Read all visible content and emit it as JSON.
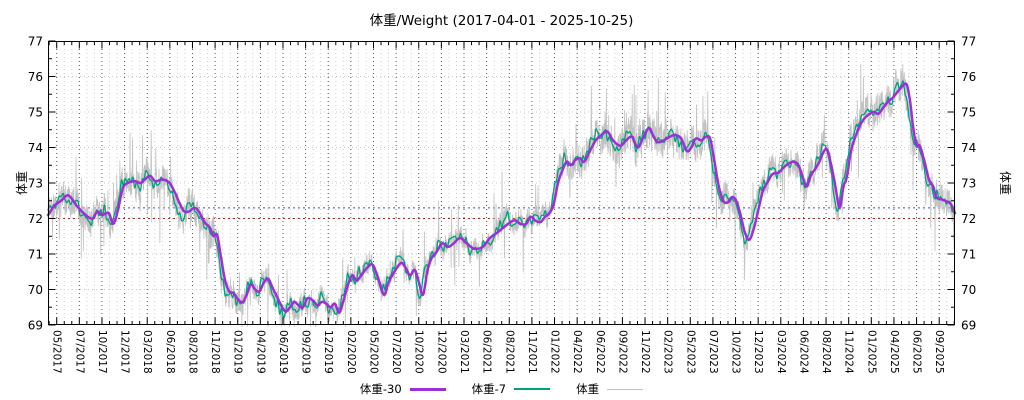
{
  "chart_data": {
    "type": "line",
    "title": "体重/Weight (2017-04-01 - 2025-10-25)",
    "x_range": [
      "2017-04-01",
      "2025-10-25"
    ],
    "x_total_days": 3130,
    "ylabel_left": "体重",
    "ylabel_right": "体重",
    "ylim": [
      69,
      77
    ],
    "yticks": [
      69,
      70,
      71,
      72,
      73,
      74,
      75,
      76,
      77
    ],
    "xtick_labels": [
      "05/2017",
      "07/2017",
      "10/2017",
      "12/2017",
      "03/2018",
      "06/2018",
      "08/2018",
      "11/2018",
      "01/2019",
      "04/2019",
      "06/2019",
      "09/2019",
      "12/2019",
      "02/2020",
      "05/2020",
      "07/2020",
      "10/2020",
      "12/2020",
      "03/2021",
      "06/2021",
      "08/2021",
      "11/2021",
      "01/2022",
      "04/2022",
      "06/2022",
      "09/2022",
      "11/2022",
      "02/2023",
      "05/2023",
      "07/2023",
      "10/2023",
      "12/2023",
      "03/2024",
      "06/2024",
      "08/2024",
      "11/2024",
      "01/2025",
      "04/2025",
      "06/2025",
      "09/2025"
    ],
    "grid": {
      "major_x_color": "#993333",
      "minor_x_color": "#cdcdcd",
      "y_color": "#c9c9c9",
      "minors_per_major": 3
    },
    "reference_lines": [
      {
        "y": 72.3,
        "color": "#3b4fc4"
      },
      {
        "y": 72.0,
        "color": "#a02828"
      }
    ],
    "series": [
      {
        "name": "体重-30",
        "role": "30-day moving average",
        "color": "#9b30d9",
        "width": 2.5,
        "points": [
          [
            0,
            72.1
          ],
          [
            20,
            72.35
          ],
          [
            45,
            72.5
          ],
          [
            70,
            72.65
          ],
          [
            100,
            72.35
          ],
          [
            130,
            72.1
          ],
          [
            155,
            72.0
          ],
          [
            170,
            72.2
          ],
          [
            185,
            72.1
          ],
          [
            210,
            72.15
          ],
          [
            225,
            71.85
          ],
          [
            240,
            72.2
          ],
          [
            258,
            72.85
          ],
          [
            275,
            73.0
          ],
          [
            300,
            73.05
          ],
          [
            320,
            73.0
          ],
          [
            334,
            73.1
          ],
          [
            352,
            73.2
          ],
          [
            370,
            73.05
          ],
          [
            395,
            73.1
          ],
          [
            420,
            73.0
          ],
          [
            440,
            72.7
          ],
          [
            456,
            72.4
          ],
          [
            470,
            72.2
          ],
          [
            487,
            72.2
          ],
          [
            505,
            72.3
          ],
          [
            520,
            72.2
          ],
          [
            540,
            71.9
          ],
          [
            558,
            71.75
          ],
          [
            572,
            71.5
          ],
          [
            583,
            71.55
          ],
          [
            595,
            71.0
          ],
          [
            610,
            70.3
          ],
          [
            625,
            69.95
          ],
          [
            640,
            69.9
          ],
          [
            658,
            69.7
          ],
          [
            673,
            69.65
          ],
          [
            688,
            69.9
          ],
          [
            700,
            70.15
          ],
          [
            715,
            70.0
          ],
          [
            730,
            69.95
          ],
          [
            745,
            70.2
          ],
          [
            760,
            70.3
          ],
          [
            775,
            70.05
          ],
          [
            790,
            69.8
          ],
          [
            805,
            69.55
          ],
          [
            820,
            69.38
          ],
          [
            835,
            69.5
          ],
          [
            850,
            69.65
          ],
          [
            865,
            69.55
          ],
          [
            880,
            69.5
          ],
          [
            895,
            69.75
          ],
          [
            913,
            69.7
          ],
          [
            930,
            69.55
          ],
          [
            945,
            69.65
          ],
          [
            960,
            69.6
          ],
          [
            975,
            69.5
          ],
          [
            990,
            69.6
          ],
          [
            1005,
            69.35
          ],
          [
            1020,
            69.7
          ],
          [
            1036,
            70.15
          ],
          [
            1050,
            70.4
          ],
          [
            1065,
            70.25
          ],
          [
            1080,
            70.4
          ],
          [
            1100,
            70.6
          ],
          [
            1120,
            70.7
          ],
          [
            1140,
            70.3
          ],
          [
            1160,
            69.85
          ],
          [
            1175,
            70.2
          ],
          [
            1195,
            70.5
          ],
          [
            1220,
            70.75
          ],
          [
            1235,
            70.6
          ],
          [
            1249,
            70.4
          ],
          [
            1266,
            70.55
          ],
          [
            1280,
            70.2
          ],
          [
            1294,
            69.85
          ],
          [
            1310,
            70.55
          ],
          [
            1325,
            70.9
          ],
          [
            1340,
            71.05
          ],
          [
            1360,
            71.3
          ],
          [
            1380,
            71.2
          ],
          [
            1400,
            71.3
          ],
          [
            1422,
            71.45
          ],
          [
            1445,
            71.3
          ],
          [
            1470,
            71.15
          ],
          [
            1500,
            71.2
          ],
          [
            1525,
            71.45
          ],
          [
            1550,
            71.6
          ],
          [
            1580,
            71.8
          ],
          [
            1610,
            71.95
          ],
          [
            1630,
            71.85
          ],
          [
            1650,
            71.85
          ],
          [
            1665,
            72.05
          ],
          [
            1680,
            71.95
          ],
          [
            1700,
            71.9
          ],
          [
            1715,
            72.05
          ],
          [
            1730,
            72.15
          ],
          [
            1745,
            72.4
          ],
          [
            1760,
            73.0
          ],
          [
            1775,
            73.35
          ],
          [
            1790,
            73.6
          ],
          [
            1805,
            73.5
          ],
          [
            1820,
            73.65
          ],
          [
            1835,
            73.7
          ],
          [
            1850,
            73.6
          ],
          [
            1870,
            73.9
          ],
          [
            1890,
            74.2
          ],
          [
            1910,
            74.35
          ],
          [
            1930,
            74.45
          ],
          [
            1950,
            74.2
          ],
          [
            1975,
            74.05
          ],
          [
            1995,
            74.2
          ],
          [
            2015,
            74.3
          ],
          [
            2035,
            74.0
          ],
          [
            2055,
            74.3
          ],
          [
            2075,
            74.55
          ],
          [
            2090,
            74.3
          ],
          [
            2105,
            74.15
          ],
          [
            2125,
            74.2
          ],
          [
            2145,
            74.3
          ],
          [
            2165,
            74.35
          ],
          [
            2185,
            74.25
          ],
          [
            2205,
            73.9
          ],
          [
            2220,
            74.0
          ],
          [
            2235,
            74.25
          ],
          [
            2255,
            74.2
          ],
          [
            2270,
            74.3
          ],
          [
            2285,
            74.25
          ],
          [
            2300,
            73.6
          ],
          [
            2315,
            72.9
          ],
          [
            2330,
            72.5
          ],
          [
            2345,
            72.45
          ],
          [
            2360,
            72.6
          ],
          [
            2375,
            72.5
          ],
          [
            2390,
            72.1
          ],
          [
            2405,
            71.6
          ],
          [
            2420,
            71.4
          ],
          [
            2435,
            71.7
          ],
          [
            2450,
            72.2
          ],
          [
            2466,
            72.75
          ],
          [
            2485,
            73.05
          ],
          [
            2500,
            73.25
          ],
          [
            2523,
            73.3
          ],
          [
            2540,
            73.45
          ],
          [
            2557,
            73.55
          ],
          [
            2575,
            73.6
          ],
          [
            2590,
            73.5
          ],
          [
            2605,
            73.15
          ],
          [
            2618,
            72.9
          ],
          [
            2632,
            73.2
          ],
          [
            2648,
            73.4
          ],
          [
            2662,
            73.6
          ],
          [
            2675,
            73.85
          ],
          [
            2688,
            73.95
          ],
          [
            2700,
            73.6
          ],
          [
            2715,
            73.0
          ],
          [
            2732,
            72.3
          ],
          [
            2745,
            72.9
          ],
          [
            2756,
            73.15
          ],
          [
            2771,
            73.9
          ],
          [
            2786,
            74.3
          ],
          [
            2801,
            74.6
          ],
          [
            2815,
            74.8
          ],
          [
            2836,
            74.95
          ],
          [
            2850,
            75.0
          ],
          [
            2865,
            74.95
          ],
          [
            2880,
            75.1
          ],
          [
            2900,
            75.3
          ],
          [
            2915,
            75.4
          ],
          [
            2930,
            75.55
          ],
          [
            2945,
            75.7
          ],
          [
            2963,
            75.78
          ],
          [
            2975,
            75.3
          ],
          [
            2985,
            74.6
          ],
          [
            2997,
            74.05
          ],
          [
            3008,
            74.05
          ],
          [
            3025,
            73.6
          ],
          [
            3040,
            73.1
          ],
          [
            3055,
            72.9
          ],
          [
            3065,
            72.6
          ],
          [
            3080,
            72.55
          ],
          [
            3095,
            72.5
          ],
          [
            3110,
            72.45
          ],
          [
            3120,
            72.35
          ],
          [
            3130,
            72.15
          ]
        ]
      },
      {
        "name": "体重-7",
        "role": "7-day moving average",
        "color": "#00a27c",
        "width": 1.3,
        "derived": {
          "from": "体重-30",
          "lead_days": 8,
          "wiggle_amp": 0.22
        }
      },
      {
        "name": "体重",
        "role": "daily weight",
        "color": "#c2c2c2",
        "width": 0.8,
        "derived": {
          "from": "体重-7",
          "noise_amp_profile": [
            [
              0,
              0.42
            ],
            [
              600,
              0.46
            ],
            [
              700,
              0.32
            ],
            [
              1300,
              0.3
            ],
            [
              1700,
              0.34
            ],
            [
              1800,
              0.52
            ],
            [
              2100,
              0.55
            ],
            [
              2300,
              0.45
            ],
            [
              2450,
              0.4
            ],
            [
              2750,
              0.46
            ],
            [
              2950,
              0.5
            ],
            [
              3130,
              0.38
            ]
          ],
          "spike_rate": 0.045,
          "spike_up_bias_range": [
            1790,
            2330
          ]
        }
      }
    ]
  }
}
